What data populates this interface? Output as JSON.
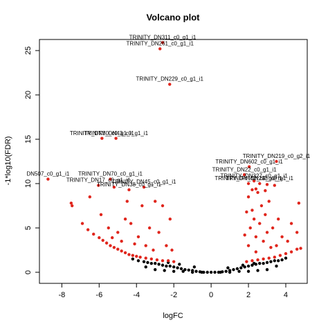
{
  "chart_data": {
    "type": "scatter",
    "title": "Volcano plot",
    "x_label": "logFC",
    "y_label": "-1*log10(FDR)",
    "xlim": [
      -9.2,
      5.15
    ],
    "ylim": [
      -1.25,
      26.25
    ],
    "xticks": [
      -8,
      -6,
      -4,
      -2,
      0,
      2,
      4
    ],
    "yticks": [
      0,
      5,
      10,
      15,
      20,
      25
    ],
    "series": [
      {
        "color": "#000000",
        "x": [
          -4.2,
          -3.9,
          -3.6,
          -3.4,
          -3.2,
          -3.0,
          -2.8,
          -2.6,
          -2.4,
          -2.2,
          -2.0,
          -1.8,
          -1.6,
          -1.4,
          -1.2,
          -1.0,
          -0.8,
          -0.6,
          -0.4,
          -0.2,
          0,
          0.2,
          0.4,
          0.6,
          0.8,
          1.0,
          1.2,
          1.4,
          1.6,
          1.8,
          2.0,
          2.2,
          2.4,
          2.6,
          2.8,
          3.0,
          3.2,
          3.4,
          3.6,
          3.8,
          4.0,
          -3.0,
          -2.5,
          -2.0,
          -1.5,
          -1.0,
          -0.5,
          0.5,
          1.0,
          1.5,
          2.0,
          2.5,
          3.0,
          -3.5,
          -1.7,
          -0.9,
          0.9,
          1.7,
          3.5,
          -2.3,
          2.3
        ],
        "values": [
          1.5,
          1.3,
          1.2,
          1.1,
          1.0,
          1.0,
          0.9,
          0.8,
          0.7,
          0.7,
          0.6,
          0.5,
          0.4,
          0.3,
          0.25,
          0.2,
          0.1,
          0.05,
          0,
          0,
          0,
          0,
          0,
          0.05,
          0.1,
          0.2,
          0.3,
          0.4,
          0.5,
          0.6,
          0.7,
          0.8,
          0.9,
          1.0,
          1.0,
          1.1,
          1.2,
          1.3,
          1.3,
          1.4,
          1.6,
          0.3,
          0.2,
          0.1,
          0.1,
          0,
          0,
          0,
          0,
          0.1,
          0.1,
          0.2,
          0.3,
          0.6,
          0.9,
          0.6,
          0.5,
          0.8,
          0.7,
          1.1,
          1.0
        ]
      },
      {
        "color": "#e0261d",
        "x": [
          -7.5,
          -7.45,
          -6.9,
          -6.6,
          -6.3,
          -6.0,
          -5.8,
          -5.6,
          -5.4,
          -5.2,
          -5.0,
          -4.8,
          -4.6,
          -4.4,
          -4.2,
          -4.0,
          -3.8,
          -3.5,
          -3.2,
          -2.9,
          -2.6,
          -2.3,
          -2.0,
          -6.5,
          -5.9,
          -5.5,
          -5.0,
          -4.6,
          -4.3,
          -4.5,
          -3.9,
          -3.7,
          -3.5,
          -3.3,
          -3.0,
          -2.8,
          -2.6,
          -2.4,
          -2.2,
          -2.1,
          -4.8,
          -5.3,
          -4.1,
          -3.1,
          -2.74,
          -2.6,
          -2.22,
          -5.85,
          -5.1,
          -8.74,
          -5.4,
          -6.04,
          -5.2,
          -4.4,
          -3.6,
          1.9,
          2.2,
          2.5,
          2.8,
          3.1,
          3.4,
          3.7,
          4.0,
          4.3,
          4.6,
          4.8,
          2.0,
          2.1,
          2.2,
          2.0,
          2.3,
          2.4,
          2.5,
          2.6,
          2.7,
          2.8,
          2.9,
          3.0,
          3.1,
          3.3,
          3.5,
          3.6,
          3.8,
          4.1,
          4.3,
          4.7,
          4.6,
          1.8,
          1.9,
          2.2,
          2.4,
          3.2,
          3.5,
          2.04,
          1.78,
          2.3,
          2.0,
          2.6,
          3.0,
          3.4,
          2.9,
          2.4
        ],
        "values": [
          7.8,
          7.5,
          5.5,
          4.8,
          4.3,
          3.9,
          3.6,
          3.3,
          3.0,
          2.8,
          2.6,
          2.4,
          2.2,
          2.0,
          1.9,
          1.8,
          1.7,
          1.6,
          1.5,
          1.4,
          1.3,
          1.3,
          1.2,
          8.5,
          6.5,
          5.0,
          4.5,
          6.0,
          5.5,
          8.0,
          4.0,
          7.5,
          3.0,
          5.0,
          8.0,
          4.5,
          7.5,
          3.0,
          6.0,
          2.5,
          3.5,
          3.9,
          3.2,
          2.5,
          25.2,
          25.9,
          21.2,
          15.1,
          15.1,
          10.5,
          10.5,
          9.8,
          9.6,
          9.3,
          9.6,
          1.2,
          1.3,
          1.4,
          1.5,
          1.6,
          1.7,
          1.9,
          2.1,
          2.3,
          2.6,
          2.7,
          3.0,
          5.0,
          7.0,
          8.5,
          6.0,
          4.0,
          9.0,
          5.5,
          7.5,
          3.5,
          6.5,
          4.5,
          8.0,
          5.0,
          3.0,
          6.0,
          4.0,
          3.5,
          5.5,
          7.8,
          4.5,
          4.2,
          6.8,
          9.3,
          2.3,
          2.8,
          12.5,
          11.9,
          11.0,
          10.3,
          10.0,
          10.0,
          9.9,
          9.8,
          9.2,
          9.4
        ]
      }
    ],
    "annotations": [
      {
        "text": "TRINITY_DN311_c0_g1_i1",
        "x": -2.6,
        "y": 25.9
      },
      {
        "text": "TRINITY_DN261_c0_g1_i1",
        "x": -2.74,
        "y": 25.2
      },
      {
        "text": "TRINITY_DN229_c0_g1_i1",
        "x": -2.22,
        "y": 21.2
      },
      {
        "text": "TRINITY_DN30_c0_g1_i1",
        "x": -5.85,
        "y": 15.1
      },
      {
        "text": "TRINITY_DN43_c0_g1_i1",
        "x": -5.1,
        "y": 15.1
      },
      {
        "text": "DN507_c0_g1_i1",
        "x": -8.74,
        "y": 10.5
      },
      {
        "text": "TRINITY_DN70_c0_g1_i1",
        "x": -5.4,
        "y": 10.5
      },
      {
        "text": "TRINITY_DN17_c0_g1_i1",
        "x": -6.04,
        "y": 9.8
      },
      {
        "text": "TRINITY_DN38_c0_g1_i1",
        "x": -4.4,
        "y": 9.3
      },
      {
        "text": "TRINITY_DN45_c0_g1_i1",
        "x": -3.6,
        "y": 9.6
      },
      {
        "text": "TRINITY_DN219_c0_g2_i1",
        "x": 3.5,
        "y": 12.5
      },
      {
        "text": "TRINITY_DN602_c0_g1_i1",
        "x": 2.04,
        "y": 11.9
      },
      {
        "text": "TRINITY_DN22_c0_g1_i1",
        "x": 1.78,
        "y": 11.0
      },
      {
        "text": "TRINITY_DN327_c0_g1_i1",
        "x": 2.3,
        "y": 10.3
      },
      {
        "text": "TRINITY_DN233_c0_g1_i1",
        "x": 2.6,
        "y": 10.0
      },
      {
        "text": "TRINITY_DN462_c0_g1_i1",
        "x": 2.0,
        "y": 10.0
      }
    ]
  }
}
